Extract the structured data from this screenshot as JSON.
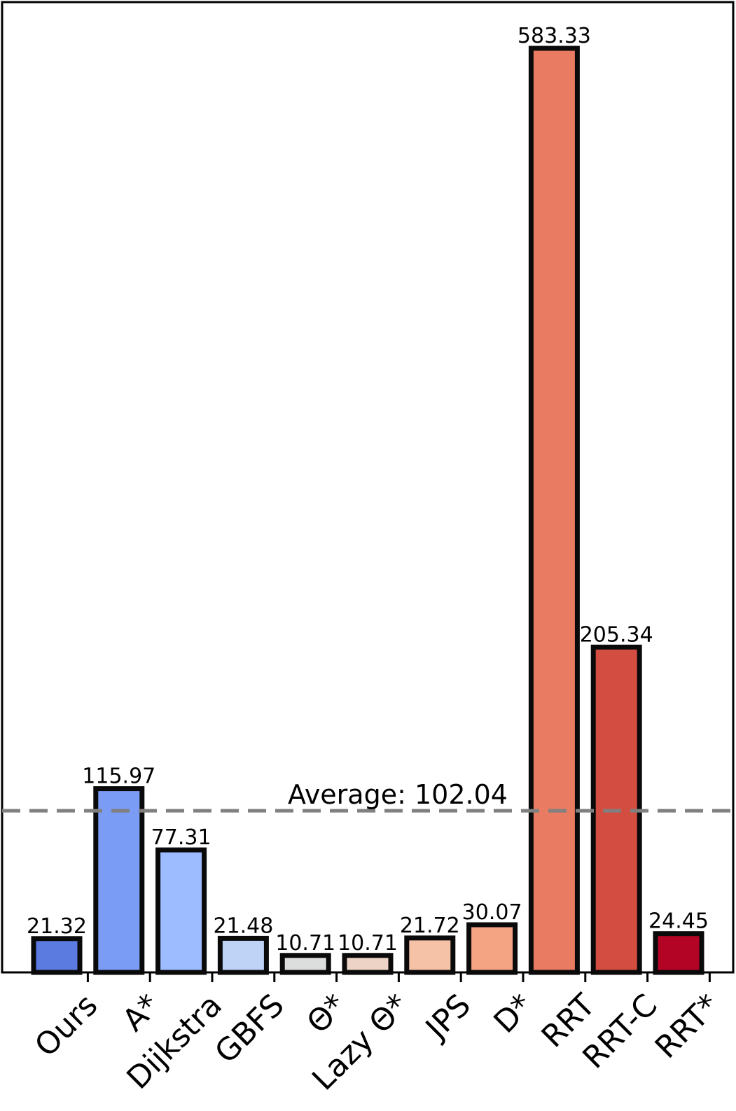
{
  "chart_data": {
    "type": "bar",
    "title": "",
    "xlabel": "",
    "ylabel": "",
    "categories": [
      "Ours",
      "A*",
      "Dijkstra",
      "GBFS",
      "Θ*",
      "Lazy Θ*",
      "JPS",
      "D*",
      "RRT",
      "RRT-C",
      "RRT*"
    ],
    "values": [
      21.32,
      115.97,
      77.31,
      21.48,
      10.71,
      10.71,
      21.72,
      30.07,
      583.33,
      205.34,
      24.45
    ],
    "value_labels": [
      "21.32",
      "115.97",
      "77.31",
      "21.48",
      "10.71",
      "10.71",
      "21.72",
      "30.07",
      "583.33",
      "205.34",
      "24.45"
    ],
    "colors": [
      "#5b7be0",
      "#7b9cf5",
      "#9dbbff",
      "#bfd3f6",
      "#dcdddd",
      "#ecd3c5",
      "#f5c2a7",
      "#f4a483",
      "#e97b62",
      "#d44d41",
      "#b40426"
    ],
    "ylim": [
      0,
      612.5
    ],
    "grid": false,
    "average": {
      "value": 102.04,
      "label": "Average: 102.04",
      "color": "#808080",
      "style": "dashed"
    }
  }
}
